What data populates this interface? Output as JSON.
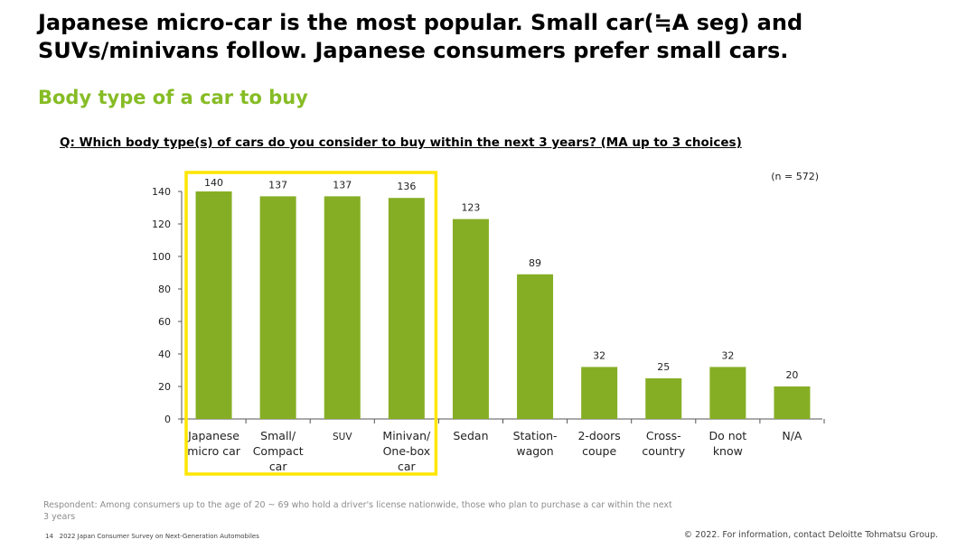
{
  "slide": {
    "headline": "Japanese micro-car is the most popular. Small car(≒A seg) and SUVs/minivans follow. Japanese consumers prefer small cars.",
    "subtitle": "Body type of a car to buy",
    "question": "Q: Which body type(s) of cars do you consider to buy within the next 3 years? (MA up to 3 choices)",
    "respondent_note": "Respondent: Among consumers up to the age of 20 ~ 69 who hold a driver's license nationwide, those who plan to purchase a car within the next 3 years",
    "footer_page": "14",
    "footer_title": "2022 Japan Consumer Survey on Next-Generation Automobiles",
    "footer_copyright": "© 2022. For information, contact Deloitte Tohmatsu Group."
  },
  "colors": {
    "bar": "#86AE24",
    "accent": "#86BC25",
    "highlight": "#FFE600"
  },
  "chart_data": {
    "type": "bar",
    "sample_size": "(n = 572)",
    "categories": [
      [
        "Japanese",
        "micro car"
      ],
      [
        "Small/",
        "Compact",
        "car"
      ],
      [
        "SUV"
      ],
      [
        "Minivan/",
        "One-box",
        "car"
      ],
      [
        "Sedan"
      ],
      [
        "Station-",
        "wagon"
      ],
      [
        "2-doors",
        "coupe"
      ],
      [
        "Cross-",
        "country"
      ],
      [
        "Do not",
        "know"
      ],
      [
        "N/A"
      ]
    ],
    "values": [
      140,
      137,
      137,
      136,
      123,
      89,
      32,
      25,
      32,
      20
    ],
    "yticks": [
      0,
      20,
      40,
      60,
      80,
      100,
      120,
      140
    ],
    "ylim": [
      0,
      140
    ],
    "highlighted_range": [
      0,
      3
    ],
    "title": "",
    "xlabel": "",
    "ylabel": ""
  }
}
